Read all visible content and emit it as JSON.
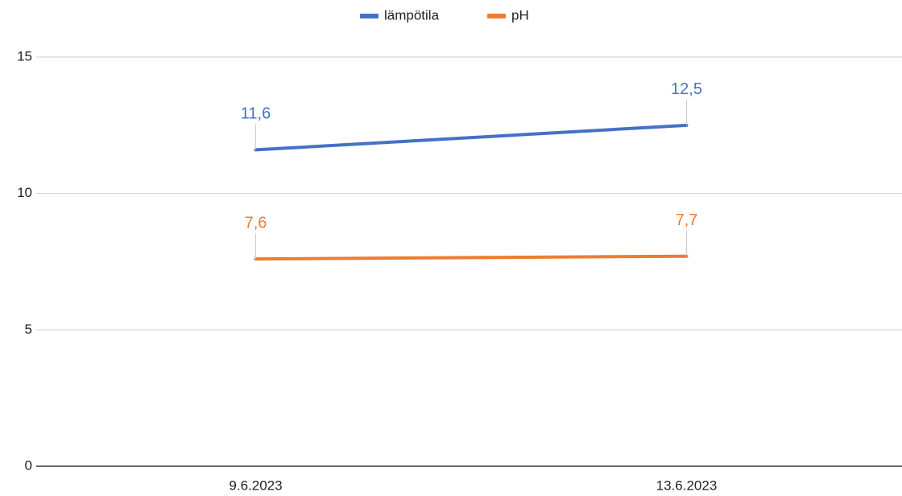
{
  "chart_data": {
    "type": "line",
    "categories": [
      "9.6.2023",
      "13.6.2023"
    ],
    "series": [
      {
        "name": "lämpötila",
        "color": "#4472c4",
        "values": [
          11.6,
          12.5
        ],
        "value_labels": [
          "11,6",
          "12,5"
        ]
      },
      {
        "name": "pH",
        "color": "#ed7d31",
        "values": [
          7.6,
          7.7
        ],
        "value_labels": [
          "7,6",
          "7,7"
        ]
      }
    ],
    "ylim": [
      0,
      15
    ],
    "yticks": [
      0,
      5,
      10,
      15
    ],
    "grid": true,
    "legend": "top"
  }
}
